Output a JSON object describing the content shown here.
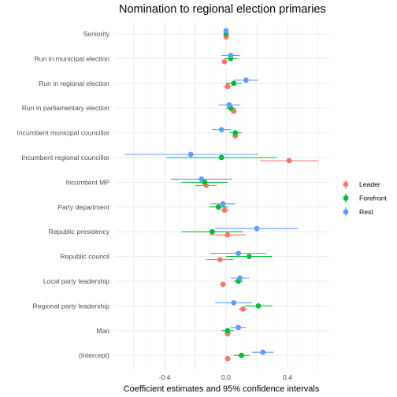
{
  "chart_data": {
    "type": "scatter",
    "subtype": "coefficient-plot",
    "title": "Nomination to regional election primaries",
    "xlabel": "Coefficient estimates and 95% confidence intervals",
    "ylabel": "",
    "xlim": [
      -0.62,
      0.68
    ],
    "xticks": [
      -0.4,
      0.0,
      0.4
    ],
    "xtick_labels": [
      "-0.4",
      "0.0",
      "0.4"
    ],
    "categories": [
      "Seniority",
      "Run in municipal election",
      "Run in regional election",
      "Run in parliamentary election",
      "Incumbent municipal councillor",
      "Incumbent regional councillor",
      "Incumbent MP",
      "Party department",
      "Republic presidency",
      "Republic council",
      "Local party leadership",
      "Regional party leadership",
      "Man",
      "(Intercept)"
    ],
    "grid": true,
    "legend": {
      "position": "right",
      "entries": [
        "Leader",
        "Forefront",
        "Rest"
      ]
    },
    "series": [
      {
        "name": "Leader",
        "color": "#F8766D",
        "estimates": [
          0.0,
          -0.01,
          0.01,
          0.05,
          0.06,
          0.41,
          -0.13,
          -0.01,
          0.01,
          -0.04,
          -0.02,
          0.11,
          0.01,
          0.01
        ],
        "lower": [
          -0.01,
          -0.03,
          -0.02,
          0.03,
          0.04,
          0.22,
          -0.2,
          -0.04,
          -0.11,
          -0.13,
          -0.04,
          0.08,
          -0.01,
          -0.01
        ],
        "upper": [
          0.01,
          0.01,
          0.04,
          0.07,
          0.08,
          0.6,
          -0.06,
          0.02,
          0.13,
          0.05,
          0.0,
          0.14,
          0.03,
          0.03
        ]
      },
      {
        "name": "Forefront",
        "color": "#00BA38",
        "estimates": [
          0.0,
          0.03,
          0.05,
          0.03,
          0.06,
          -0.03,
          -0.14,
          -0.05,
          -0.09,
          0.15,
          0.08,
          0.21,
          0.01,
          0.1
        ],
        "lower": [
          -0.01,
          -0.01,
          0.0,
          0.0,
          0.02,
          -0.39,
          -0.29,
          -0.11,
          -0.29,
          0.0,
          0.05,
          0.12,
          -0.03,
          0.05
        ],
        "upper": [
          0.01,
          0.07,
          0.1,
          0.06,
          0.1,
          0.33,
          0.01,
          0.01,
          0.11,
          0.3,
          0.11,
          0.3,
          0.05,
          0.15
        ]
      },
      {
        "name": "Rest",
        "color": "#619CFF",
        "estimates": [
          0.0,
          0.03,
          0.13,
          0.02,
          -0.03,
          -0.23,
          -0.16,
          -0.02,
          0.2,
          0.08,
          0.09,
          0.05,
          0.08,
          0.24
        ],
        "lower": [
          -0.01,
          -0.03,
          0.05,
          -0.05,
          -0.09,
          -0.66,
          -0.36,
          -0.1,
          -0.07,
          -0.1,
          0.03,
          -0.07,
          0.03,
          0.17
        ],
        "upper": [
          0.01,
          0.09,
          0.21,
          0.09,
          0.03,
          0.21,
          0.04,
          0.06,
          0.47,
          0.26,
          0.15,
          0.17,
          0.13,
          0.31
        ]
      }
    ]
  }
}
